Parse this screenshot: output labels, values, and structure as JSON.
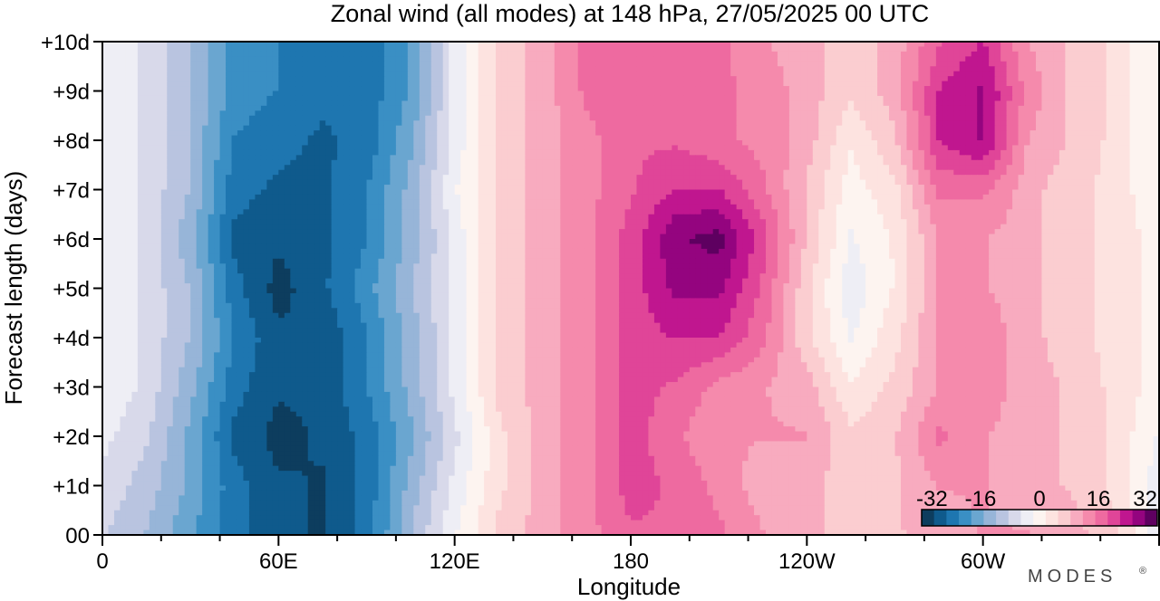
{
  "chart_data": {
    "type": "heatmap",
    "title": "Zonal wind (all modes) at 148 hPa,  27/05/2025  00 UTC",
    "xlabel": "Longitude",
    "ylabel": "Forecast length (days)",
    "x_ticks": [
      "0",
      "60E",
      "120E",
      "180",
      "120W",
      "60W"
    ],
    "y_ticks": [
      "00",
      "+1d",
      "+2d",
      "+3d",
      "+4d",
      "+5d",
      "+6d",
      "+7d",
      "+8d",
      "+9d",
      "+10d"
    ],
    "xlim": [
      0,
      360
    ],
    "ylim": [
      0,
      10
    ],
    "colorbar": {
      "labels": [
        "-32",
        "-16",
        "0",
        "16",
        "32"
      ],
      "range": [
        -32,
        32
      ],
      "colors": [
        "#0d3d5e",
        "#0f5a8c",
        "#1e76b0",
        "#3a8fc4",
        "#6aa6d0",
        "#97b5d8",
        "#b9c4e0",
        "#d8d9ea",
        "#eeeef5",
        "#fdf4f0",
        "#fde3e0",
        "#fbcdd0",
        "#f8abbf",
        "#f58aac",
        "#ee6aa0",
        "#e04598",
        "#c0168f",
        "#94047f",
        "#5e0060"
      ]
    },
    "x": [
      0,
      15,
      30,
      45,
      60,
      75,
      90,
      105,
      120,
      135,
      150,
      165,
      180,
      195,
      210,
      225,
      240,
      255,
      270,
      285,
      300,
      315,
      330,
      345,
      360
    ],
    "y": [
      0,
      1,
      2,
      3,
      4,
      5,
      6,
      7,
      8,
      9,
      10
    ],
    "z": [
      [
        -8,
        -12,
        -18,
        -24,
        -28,
        -29,
        -24,
        -12,
        -2,
        6,
        10,
        14,
        18,
        18,
        16,
        12,
        10,
        6,
        8,
        10,
        12,
        12,
        10,
        6,
        -4
      ],
      [
        -6,
        -10,
        -16,
        -24,
        -28,
        -29,
        -24,
        -14,
        -4,
        4,
        10,
        14,
        20,
        18,
        14,
        10,
        10,
        6,
        8,
        12,
        12,
        10,
        8,
        4,
        -4
      ],
      [
        -4,
        -8,
        -16,
        -26,
        -30,
        -28,
        -24,
        -16,
        -6,
        4,
        10,
        14,
        20,
        16,
        12,
        12,
        12,
        6,
        8,
        16,
        12,
        10,
        8,
        4,
        -2
      ],
      [
        -2,
        -6,
        -14,
        -24,
        -28,
        -28,
        -22,
        -14,
        -4,
        6,
        10,
        14,
        20,
        18,
        14,
        12,
        10,
        2,
        6,
        12,
        14,
        10,
        8,
        4,
        0
      ],
      [
        -2,
        -6,
        -12,
        -22,
        -28,
        -28,
        -22,
        -14,
        -4,
        6,
        10,
        14,
        20,
        22,
        22,
        16,
        6,
        -2,
        4,
        12,
        14,
        10,
        6,
        4,
        0
      ],
      [
        -2,
        -6,
        -12,
        -24,
        -30,
        -26,
        -20,
        -12,
        -4,
        6,
        10,
        14,
        20,
        26,
        26,
        18,
        6,
        -4,
        2,
        12,
        12,
        10,
        6,
        4,
        0
      ],
      [
        -2,
        -6,
        -14,
        -26,
        -28,
        -26,
        -22,
        -14,
        -4,
        6,
        10,
        14,
        20,
        28,
        30,
        20,
        8,
        -2,
        2,
        12,
        12,
        10,
        6,
        4,
        0
      ],
      [
        -2,
        -6,
        -12,
        -24,
        -26,
        -26,
        -22,
        -14,
        -2,
        6,
        10,
        14,
        18,
        22,
        22,
        16,
        8,
        0,
        4,
        16,
        16,
        10,
        6,
        4,
        -2
      ],
      [
        -2,
        -6,
        -12,
        -22,
        -24,
        -26,
        -24,
        -16,
        -4,
        6,
        10,
        14,
        18,
        18,
        16,
        14,
        10,
        2,
        8,
        22,
        26,
        12,
        8,
        4,
        -2
      ],
      [
        -2,
        -6,
        -12,
        -20,
        -22,
        -24,
        -24,
        -18,
        -4,
        6,
        10,
        16,
        18,
        18,
        16,
        14,
        10,
        6,
        10,
        22,
        26,
        14,
        8,
        4,
        -2
      ],
      [
        -2,
        -6,
        -12,
        -20,
        -22,
        -22,
        -24,
        -18,
        -4,
        6,
        10,
        16,
        16,
        18,
        16,
        12,
        10,
        6,
        10,
        18,
        22,
        12,
        8,
        4,
        -2
      ]
    ],
    "brand": "MODES"
  }
}
